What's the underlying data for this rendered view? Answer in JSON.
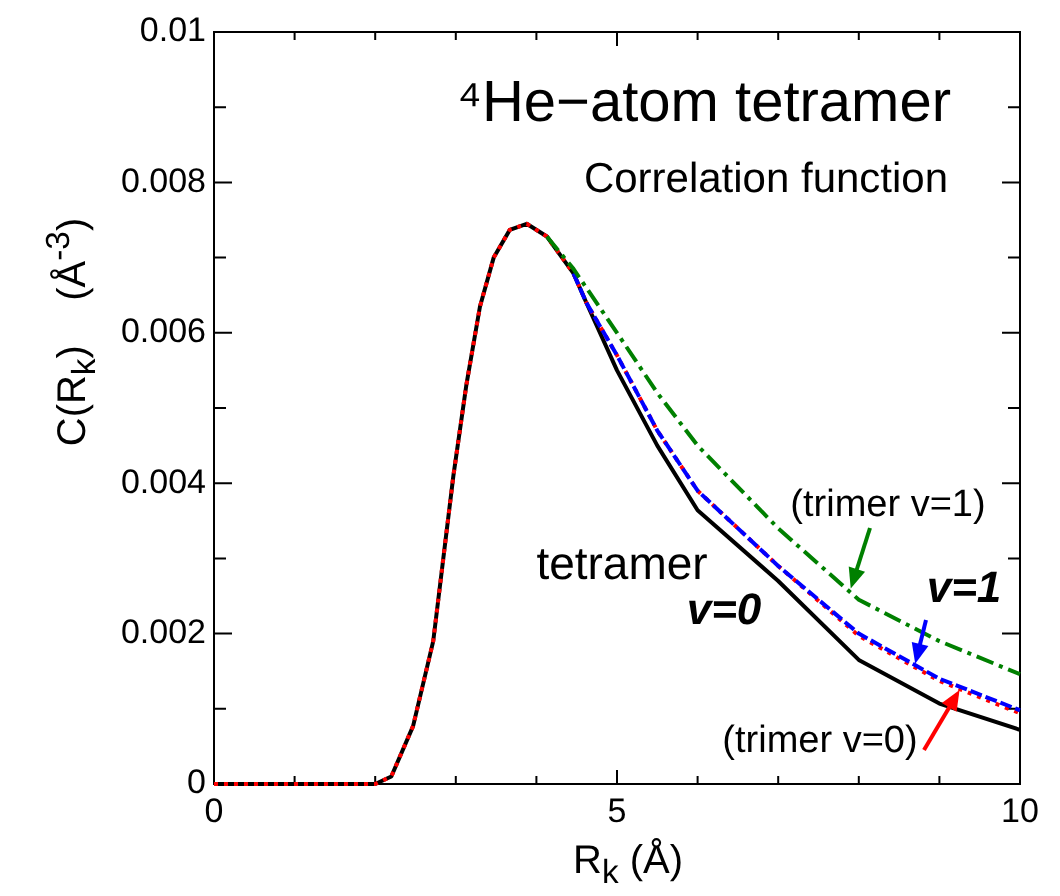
{
  "chart_data": {
    "type": "line",
    "title": "⁴He−atom tetramer",
    "subtitle": "Correlation function",
    "xlabel": "R$_{k}$ (Å)",
    "ylabel": "C(R$_{k}$)    (Å$^{-3}$)",
    "xlim": [
      0,
      10
    ],
    "xticks": [
      0,
      {
        "value": 1,
        "label": null
      },
      {
        "value": 2,
        "label": null
      },
      {
        "value": 3,
        "label": null
      },
      {
        "value": 4,
        "label": null
      },
      5,
      {
        "value": 6,
        "label": null
      },
      {
        "value": 7,
        "label": null
      },
      {
        "value": 8,
        "label": null
      },
      {
        "value": 9,
        "label": null
      },
      10
    ],
    "ylim": [
      0,
      0.01
    ],
    "yticks": [
      0,
      {
        "value": 0.001,
        "label": null
      },
      0.002,
      {
        "value": 0.003,
        "label": null
      },
      0.004,
      {
        "value": 0.005,
        "label": null
      },
      0.006,
      {
        "value": 0.007,
        "label": null
      },
      0.008,
      {
        "value": 0.009,
        "label": null
      },
      0.01
    ],
    "grid": false,
    "legend": false,
    "marker": "none",
    "series": [
      {
        "color": "#000000",
        "line_style": "solid",
        "x": [
          0,
          1,
          2,
          2.2,
          2.47,
          2.72,
          2.97,
          3.13,
          3.3,
          3.47,
          3.67,
          3.88,
          4.13,
          4.46,
          4.62,
          5,
          5.5,
          6,
          7,
          8,
          9,
          10
        ],
        "values": [
          0,
          0,
          0,
          0.0001,
          0.00077,
          0.0019,
          0.0041,
          0.0053,
          0.00635,
          0.007,
          0.00737,
          0.00745,
          0.00728,
          0.00679,
          0.0064,
          0.0055,
          0.0045,
          0.00364,
          0.0027,
          0.00165,
          0.00107,
          0.00072
        ]
      },
      {
        "color": "#ff0000",
        "line_style": "dotted",
        "x": [
          0,
          1,
          2,
          2.2,
          2.47,
          2.72,
          2.97,
          3.13,
          3.3,
          3.47,
          3.67,
          3.88,
          4.13,
          4.46,
          4.62,
          5,
          5.5,
          6,
          7,
          8,
          9,
          10
        ],
        "values": [
          0,
          0,
          0,
          0.0001,
          0.00077,
          0.0019,
          0.0041,
          0.0053,
          0.00635,
          0.007,
          0.00737,
          0.00745,
          0.00728,
          0.00679,
          0.0064,
          0.0057,
          0.0047,
          0.0039,
          0.0029,
          0.00197,
          0.00137,
          0.00094
        ]
      },
      {
        "color": "#0000ff",
        "line_style": "dashed",
        "x": [
          4.46,
          4.62,
          5,
          5.5,
          6,
          7,
          8,
          9,
          10
        ],
        "values": [
          0.00679,
          0.0064,
          0.0057,
          0.0047,
          0.0039,
          0.0029,
          0.002,
          0.0014,
          0.00098
        ]
      },
      {
        "color": "#008000",
        "line_style": "dashdot",
        "x": [
          4.13,
          4.46,
          5,
          5.5,
          6,
          7,
          8,
          9,
          10
        ],
        "values": [
          0.00728,
          0.00685,
          0.006,
          0.0052,
          0.0045,
          0.0034,
          0.00245,
          0.0019,
          0.00146
        ]
      }
    ],
    "annotations": [
      {
        "text": "(trimer v=1)",
        "x": 7.9,
        "y": 0.0026
      },
      {
        "text": "v=1",
        "x": 8.7,
        "y": 0.0016
      },
      {
        "text": "(trimer v=0)",
        "x": 9.25,
        "y": 0.00125
      },
      "tetramer",
      "v=0"
    ]
  }
}
